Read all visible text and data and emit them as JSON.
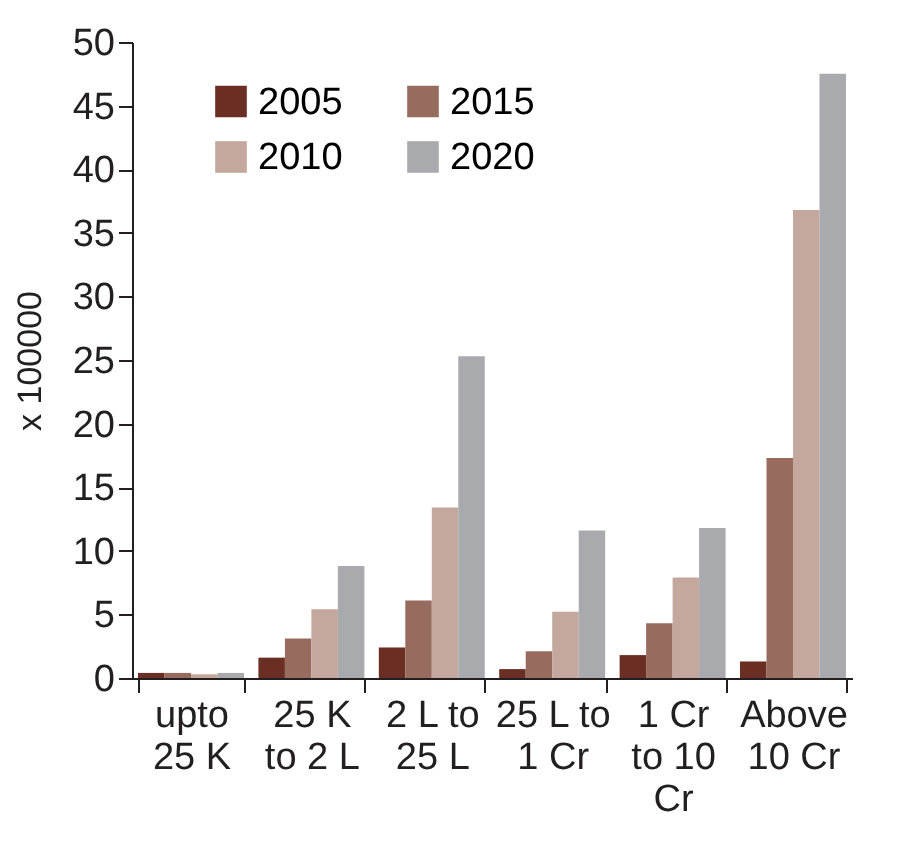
{
  "chart_data": {
    "type": "bar",
    "ylabel": "x 100000",
    "categories": [
      "upto 25 K",
      "25 K to 2 L",
      "2 L to 25 L",
      "25 L to 1 Cr",
      "1 Cr to 10 Cr",
      "Above 10 Cr"
    ],
    "series": [
      {
        "name": "2005",
        "color": "#6b2e22",
        "values": [
          0.4,
          1.6,
          2.4,
          0.7,
          1.8,
          1.3
        ]
      },
      {
        "name": "2015",
        "color": "#976b5e",
        "values": [
          0.4,
          3.1,
          6.1,
          2.1,
          4.3,
          17.3
        ]
      },
      {
        "name": "2010",
        "color": "#c4a89d",
        "values": [
          0.3,
          5.4,
          13.4,
          5.2,
          7.9,
          36.8
        ]
      },
      {
        "name": "2020",
        "color": "#a9aaae",
        "values": [
          0.4,
          8.8,
          25.3,
          11.6,
          11.8,
          47.5
        ]
      }
    ],
    "ylim": [
      0,
      50
    ],
    "yticks": [
      0,
      5,
      10,
      15,
      20,
      25,
      30,
      35,
      40,
      45,
      50
    ],
    "grid": false,
    "legend": "top left"
  }
}
